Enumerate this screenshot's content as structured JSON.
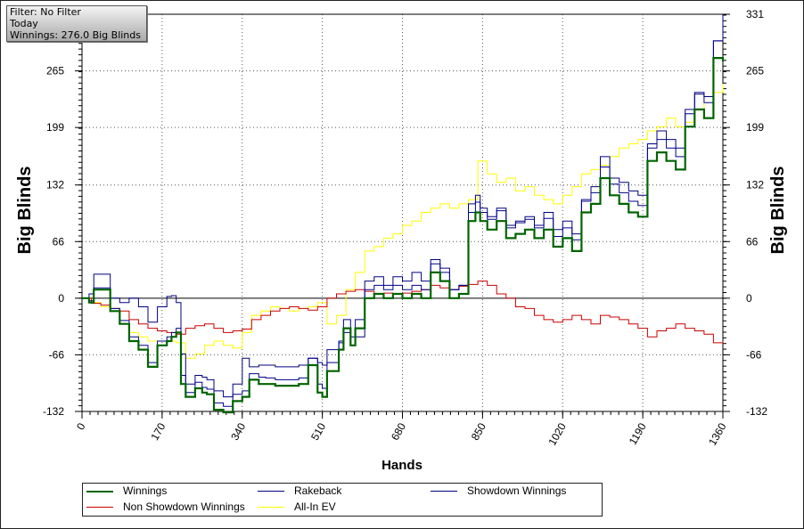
{
  "info_box": {
    "filter": "Filter: No Filter",
    "period": "Today",
    "winnings": "Winnings: 276.0 Big Blinds"
  },
  "chart_data": {
    "type": "line",
    "xlabel": "Hands",
    "ylabel": "Big Blinds",
    "xlim": [
      0,
      1360
    ],
    "ylim": [
      -132,
      331
    ],
    "x_ticks": [
      0,
      170,
      340,
      510,
      680,
      850,
      1020,
      1190,
      1360
    ],
    "y_ticks": [
      -132,
      -66,
      0,
      66,
      132,
      199,
      265
    ],
    "y_ticks_right": [
      -132,
      -66,
      0,
      66,
      132,
      199,
      265,
      331
    ],
    "grid": true,
    "legend_position": "bottom",
    "series": [
      {
        "name": "Winnings",
        "color": "#006400",
        "x": [
          0,
          15,
          25,
          60,
          80,
          100,
          120,
          140,
          160,
          180,
          190,
          200,
          210,
          220,
          240,
          255,
          265,
          280,
          300,
          320,
          340,
          355,
          375,
          390,
          410,
          430,
          460,
          480,
          500,
          510,
          520,
          545,
          555,
          570,
          580,
          600,
          620,
          640,
          660,
          680,
          700,
          720,
          740,
          760,
          780,
          800,
          820,
          835,
          845,
          860,
          880,
          900,
          920,
          940,
          960,
          980,
          1000,
          1020,
          1040,
          1060,
          1080,
          1100,
          1120,
          1140,
          1160,
          1180,
          1200,
          1220,
          1240,
          1260,
          1280,
          1300,
          1320,
          1340,
          1360
        ],
        "values": [
          0,
          -5,
          10,
          -15,
          -30,
          -50,
          -60,
          -80,
          -55,
          -50,
          -45,
          -40,
          -100,
          -115,
          -105,
          -110,
          -112,
          -130,
          -133,
          -120,
          -115,
          -95,
          -100,
          -100,
          -102,
          -102,
          -100,
          -78,
          -110,
          -115,
          -85,
          -60,
          -35,
          -55,
          -35,
          0,
          5,
          0,
          5,
          0,
          5,
          0,
          30,
          20,
          0,
          5,
          90,
          100,
          90,
          80,
          90,
          70,
          75,
          80,
          70,
          80,
          60,
          70,
          55,
          100,
          110,
          140,
          120,
          110,
          100,
          95,
          160,
          170,
          160,
          150,
          200,
          220,
          210,
          280,
          276
        ]
      },
      {
        "name": "Rakeback",
        "color": "#00008b",
        "x": [
          0,
          15,
          25,
          60,
          80,
          100,
          120,
          140,
          160,
          180,
          190,
          200,
          210,
          220,
          240,
          255,
          265,
          280,
          300,
          320,
          340,
          355,
          375,
          390,
          410,
          430,
          460,
          480,
          500,
          510,
          520,
          545,
          555,
          570,
          580,
          600,
          620,
          640,
          660,
          680,
          700,
          720,
          740,
          760,
          780,
          800,
          820,
          835,
          845,
          860,
          880,
          900,
          920,
          940,
          960,
          980,
          1000,
          1020,
          1040,
          1060,
          1080,
          1100,
          1120,
          1140,
          1160,
          1180,
          1200,
          1220,
          1240,
          1260,
          1280,
          1300,
          1320,
          1340,
          1360
        ],
        "values": [
          0,
          -3,
          12,
          -12,
          -26,
          -45,
          -55,
          -75,
          -50,
          -45,
          -40,
          -35,
          -90,
          -110,
          -98,
          -104,
          -106,
          -122,
          -126,
          -112,
          -108,
          -88,
          -92,
          -93,
          -95,
          -95,
          -93,
          -70,
          -100,
          -105,
          -75,
          -50,
          -25,
          -45,
          -25,
          10,
          15,
          10,
          15,
          10,
          15,
          10,
          40,
          30,
          10,
          15,
          100,
          112,
          100,
          92,
          102,
          82,
          88,
          92,
          82,
          93,
          72,
          82,
          68,
          113,
          123,
          153,
          133,
          123,
          113,
          108,
          175,
          185,
          175,
          165,
          215,
          238,
          228,
          300,
          331
        ]
      },
      {
        "name": "Showdown Winnings",
        "color": "#000080",
        "x": [
          0,
          15,
          25,
          60,
          80,
          100,
          120,
          140,
          160,
          180,
          190,
          200,
          210,
          220,
          240,
          255,
          265,
          280,
          300,
          320,
          340,
          355,
          375,
          390,
          410,
          430,
          460,
          480,
          500,
          510,
          520,
          545,
          555,
          570,
          580,
          600,
          620,
          640,
          660,
          680,
          700,
          720,
          740,
          760,
          780,
          800,
          820,
          835,
          845,
          860,
          880,
          900,
          920,
          940,
          960,
          980,
          1000,
          1020,
          1040,
          1060,
          1080,
          1100,
          1120,
          1140,
          1160,
          1180,
          1200,
          1220,
          1240,
          1260,
          1280,
          1300,
          1320,
          1340,
          1360
        ],
        "values": [
          0,
          5,
          28,
          0,
          -5,
          0,
          -10,
          -28,
          -10,
          2,
          3,
          -5,
          -65,
          -100,
          -90,
          -92,
          -95,
          -108,
          -115,
          -100,
          -70,
          -80,
          -78,
          -78,
          -80,
          -80,
          -78,
          -70,
          -75,
          -78,
          -60,
          -52,
          -40,
          -55,
          -45,
          20,
          25,
          15,
          25,
          20,
          30,
          20,
          45,
          35,
          10,
          15,
          110,
          120,
          105,
          95,
          105,
          85,
          90,
          95,
          85,
          100,
          80,
          90,
          75,
          115,
          130,
          165,
          140,
          135,
          125,
          120,
          180,
          195,
          185,
          175,
          220,
          240,
          235,
          300,
          331
        ]
      },
      {
        "name": "Non Showdown Winnings",
        "color": "#cc0000",
        "x": [
          0,
          20,
          40,
          60,
          80,
          100,
          120,
          140,
          160,
          180,
          200,
          220,
          240,
          260,
          280,
          300,
          320,
          340,
          360,
          380,
          400,
          420,
          440,
          460,
          480,
          500,
          520,
          540,
          560,
          580,
          600,
          620,
          640,
          660,
          680,
          700,
          720,
          740,
          760,
          780,
          800,
          820,
          840,
          860,
          880,
          900,
          920,
          940,
          960,
          980,
          1000,
          1020,
          1040,
          1060,
          1080,
          1100,
          1120,
          1140,
          1160,
          1180,
          1200,
          1220,
          1240,
          1260,
          1280,
          1300,
          1320,
          1340,
          1360
        ],
        "values": [
          0,
          -6,
          -8,
          -12,
          -15,
          -25,
          -30,
          -35,
          -38,
          -40,
          -42,
          -35,
          -32,
          -30,
          -35,
          -40,
          -38,
          -36,
          -25,
          -20,
          -15,
          -12,
          -10,
          -12,
          -14,
          -10,
          0,
          5,
          8,
          10,
          8,
          5,
          6,
          5,
          6,
          8,
          10,
          15,
          12,
          10,
          14,
          16,
          20,
          15,
          5,
          0,
          -10,
          -12,
          -20,
          -25,
          -28,
          -25,
          -20,
          -25,
          -30,
          -20,
          -22,
          -25,
          -30,
          -35,
          -45,
          -38,
          -35,
          -30,
          -35,
          -38,
          -42,
          -52,
          -50
        ]
      },
      {
        "name": "All-In EV",
        "color": "#ffff00",
        "x": [
          0,
          20,
          40,
          60,
          80,
          100,
          120,
          140,
          160,
          180,
          200,
          220,
          240,
          260,
          280,
          300,
          320,
          340,
          360,
          380,
          400,
          420,
          440,
          460,
          480,
          500,
          520,
          540,
          560,
          580,
          600,
          620,
          640,
          660,
          680,
          700,
          720,
          740,
          760,
          780,
          800,
          820,
          840,
          860,
          880,
          900,
          920,
          940,
          960,
          980,
          1000,
          1020,
          1040,
          1060,
          1080,
          1100,
          1120,
          1140,
          1160,
          1180,
          1200,
          1220,
          1240,
          1260,
          1280,
          1300,
          1320,
          1340,
          1360
        ],
        "values": [
          0,
          -5,
          -10,
          -15,
          -30,
          -40,
          -45,
          -50,
          -55,
          -50,
          -52,
          -70,
          -65,
          -55,
          -50,
          -55,
          -58,
          -40,
          -20,
          -15,
          -10,
          -12,
          -15,
          -12,
          -10,
          -5,
          -30,
          -20,
          10,
          30,
          55,
          60,
          70,
          75,
          85,
          90,
          100,
          105,
          110,
          105,
          110,
          115,
          160,
          145,
          135,
          140,
          125,
          130,
          120,
          115,
          110,
          120,
          130,
          145,
          150,
          155,
          165,
          175,
          180,
          185,
          195,
          200,
          210,
          200,
          205,
          220,
          235,
          240,
          250
        ]
      }
    ]
  }
}
